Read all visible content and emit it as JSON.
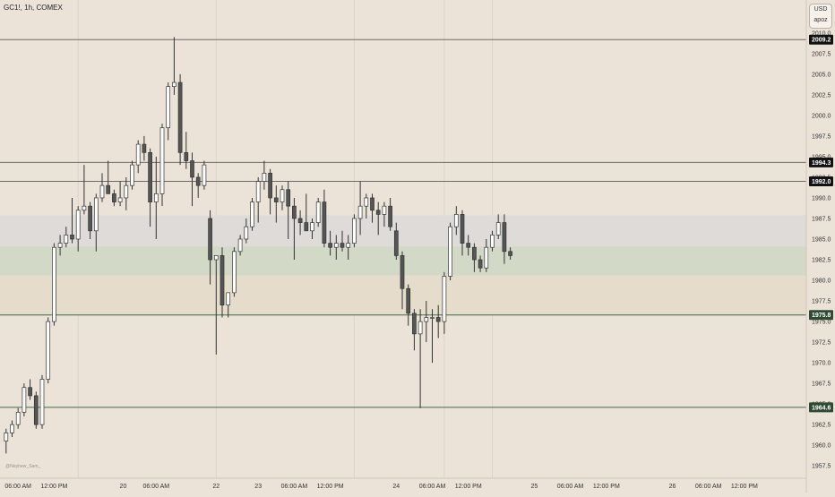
{
  "header": {
    "title": "GC1!, 1h, COMEX"
  },
  "price_scale": {
    "currency": "USD",
    "mode": "apoz"
  },
  "watermark": "@Nephew_Sam_",
  "colors": {
    "background": "#ece3d8",
    "bull_body": "#ffffff",
    "bear_body": "#555555",
    "wick": "#333333",
    "grid": "#ddd3c6",
    "zone_grey": "#dedbd8",
    "zone_green": "#d3d9c7",
    "zone_tan": "#e6dccc",
    "level_line": "#6b6b6b",
    "green_line": "#3f6b45",
    "label_dark": "#111111",
    "label_green": "#2f4a33"
  },
  "chart_data": {
    "type": "candlestick",
    "y_range": [
      1956,
      2014
    ],
    "y_ticks": [
      1957.5,
      1960.0,
      1962.5,
      1965.0,
      1967.5,
      1970.0,
      1972.5,
      1975.0,
      1977.5,
      1980.0,
      1982.5,
      1985.0,
      1987.5,
      1990.0,
      1992.5,
      1995.0,
      1997.5,
      2000.0,
      2002.5,
      2005.0,
      2007.5,
      2010.0
    ],
    "x_ticks": [
      {
        "i": 2,
        "label": "06:00 AM"
      },
      {
        "i": 8,
        "label": "12:00 PM"
      },
      {
        "i": 19.5,
        "label": "20"
      },
      {
        "i": 25,
        "label": "06:00 AM"
      },
      {
        "i": 35,
        "label": "22"
      },
      {
        "i": 42,
        "label": "23"
      },
      {
        "i": 48,
        "label": "06:00 AM"
      },
      {
        "i": 54,
        "label": "12:00 PM"
      },
      {
        "i": 65,
        "label": "24"
      },
      {
        "i": 71,
        "label": "06:00 AM"
      },
      {
        "i": 77,
        "label": "12:00 PM"
      },
      {
        "i": 88,
        "label": "25"
      },
      {
        "i": 94,
        "label": "06:00 AM"
      },
      {
        "i": 100,
        "label": "12:00 PM"
      },
      {
        "i": 111,
        "label": "26"
      },
      {
        "i": 117,
        "label": "06:00 AM"
      },
      {
        "i": 123,
        "label": "12:00 PM"
      }
    ],
    "vertical_grid_at": [
      12,
      35,
      58,
      73,
      81
    ],
    "zones": [
      {
        "from": 1987.9,
        "to": 1984.1,
        "color": "zone_grey"
      },
      {
        "from": 1984.1,
        "to": 1980.6,
        "color": "zone_green"
      },
      {
        "from": 1980.6,
        "to": 1975.8,
        "color": "zone_tan"
      }
    ],
    "levels": [
      {
        "price": 2009.2,
        "label": "2009.2",
        "style": "dark"
      },
      {
        "price": 1994.3,
        "label": "1994.3",
        "style": "dark"
      },
      {
        "price": 1992.0,
        "label": "1992.0",
        "style": "dark"
      },
      {
        "price": 1975.8,
        "label": "1975.8",
        "style": "green"
      },
      {
        "price": 1964.6,
        "label": "1964.6",
        "style": "green"
      }
    ],
    "candles": [
      [
        1960.5,
        1962.0,
        1959.0,
        1961.5
      ],
      [
        1961.5,
        1963.0,
        1961.0,
        1962.5
      ],
      [
        1962.5,
        1964.5,
        1962.0,
        1964.0
      ],
      [
        1964.0,
        1967.5,
        1963.5,
        1967.0
      ],
      [
        1967.0,
        1968.0,
        1965.5,
        1966.0
      ],
      [
        1966.0,
        1966.5,
        1962.0,
        1962.5
      ],
      [
        1962.5,
        1968.5,
        1962.0,
        1968.0
      ],
      [
        1968.0,
        1975.5,
        1967.5,
        1975.0
      ],
      [
        1975.0,
        1984.5,
        1974.5,
        1984.0
      ],
      [
        1984.0,
        1985.5,
        1983.0,
        1984.5
      ],
      [
        1984.5,
        1986.5,
        1984.0,
        1985.5
      ],
      [
        1985.5,
        1990.0,
        1984.5,
        1985.0
      ],
      [
        1985.0,
        1989.0,
        1983.5,
        1988.5
      ],
      [
        1988.5,
        1994.0,
        1988.0,
        1989.0
      ],
      [
        1989.0,
        1989.5,
        1985.0,
        1986.0
      ],
      [
        1986.0,
        1990.5,
        1983.5,
        1990.0
      ],
      [
        1990.0,
        1993.0,
        1989.5,
        1991.5
      ],
      [
        1991.5,
        1994.5,
        1990.5,
        1990.5
      ],
      [
        1990.5,
        1991.0,
        1989.0,
        1989.5
      ],
      [
        1989.5,
        1992.0,
        1989.0,
        1990.0
      ],
      [
        1990.0,
        1992.5,
        1988.5,
        1991.5
      ],
      [
        1991.5,
        1994.5,
        1991.0,
        1994.0
      ],
      [
        1994.0,
        1997.0,
        1993.0,
        1996.5
      ],
      [
        1996.5,
        1997.5,
        1994.5,
        1995.5
      ],
      [
        1995.5,
        1996.0,
        1986.5,
        1989.5
      ],
      [
        1989.5,
        1995.0,
        1985.0,
        1990.5
      ],
      [
        1990.5,
        1999.0,
        1989.0,
        1998.5
      ],
      [
        1998.5,
        2004.0,
        1997.0,
        2003.5
      ],
      [
        2003.5,
        2009.5,
        2002.5,
        2004.0
      ],
      [
        2004.0,
        2005.0,
        1994.0,
        1995.5
      ],
      [
        1995.5,
        1998.0,
        1993.5,
        1994.5
      ],
      [
        1994.5,
        1995.5,
        1989.0,
        1992.5
      ],
      [
        1992.5,
        1993.0,
        1990.0,
        1991.5
      ],
      [
        1991.5,
        1994.5,
        1991.0,
        1994.0
      ],
      [
        1987.5,
        1988.5,
        1979.5,
        1982.5
      ],
      [
        1982.5,
        1983.0,
        1971.0,
        1983.0
      ],
      [
        1983.0,
        1984.0,
        1975.5,
        1977.0
      ],
      [
        1977.0,
        1978.5,
        1975.5,
        1978.5
      ],
      [
        1978.5,
        1984.0,
        1978.0,
        1983.5
      ],
      [
        1983.5,
        1985.5,
        1983.0,
        1985.0
      ],
      [
        1985.0,
        1987.5,
        1984.5,
        1986.5
      ],
      [
        1986.5,
        1990.0,
        1986.0,
        1989.5
      ],
      [
        1989.5,
        1992.5,
        1987.0,
        1992.0
      ],
      [
        1992.0,
        1994.5,
        1991.0,
        1993.0
      ],
      [
        1993.0,
        1993.5,
        1988.0,
        1990.0
      ],
      [
        1990.0,
        1991.5,
        1987.0,
        1989.5
      ],
      [
        1989.5,
        1991.5,
        1988.5,
        1991.0
      ],
      [
        1991.0,
        1992.0,
        1985.0,
        1989.0
      ],
      [
        1989.0,
        1990.0,
        1982.5,
        1987.5
      ],
      [
        1987.5,
        1988.5,
        1985.5,
        1987.0
      ],
      [
        1987.0,
        1990.5,
        1986.5,
        1986.0
      ],
      [
        1986.0,
        1987.5,
        1985.0,
        1987.0
      ],
      [
        1987.0,
        1990.0,
        1986.5,
        1989.5
      ],
      [
        1989.5,
        1991.0,
        1984.0,
        1984.5
      ],
      [
        1984.5,
        1986.0,
        1983.0,
        1984.0
      ],
      [
        1984.0,
        1985.5,
        1982.5,
        1984.5
      ],
      [
        1984.5,
        1986.0,
        1983.5,
        1984.0
      ],
      [
        1984.0,
        1985.5,
        1982.5,
        1984.5
      ],
      [
        1984.5,
        1988.0,
        1984.0,
        1987.5
      ],
      [
        1987.5,
        1992.0,
        1985.5,
        1989.0
      ],
      [
        1989.0,
        1990.5,
        1987.5,
        1990.0
      ],
      [
        1990.0,
        1990.5,
        1987.0,
        1988.5
      ],
      [
        1988.5,
        1989.5,
        1985.5,
        1988.0
      ],
      [
        1988.0,
        1989.5,
        1986.5,
        1989.0
      ],
      [
        1989.0,
        1990.0,
        1986.0,
        1986.5
      ],
      [
        1986.0,
        1987.0,
        1982.5,
        1983.0
      ],
      [
        1983.0,
        1983.5,
        1976.5,
        1979.0
      ],
      [
        1979.0,
        1979.5,
        1974.5,
        1976.0
      ],
      [
        1976.0,
        1976.5,
        1971.5,
        1973.5
      ],
      [
        1973.5,
        1976.5,
        1964.5,
        1975.0
      ],
      [
        1975.0,
        1977.5,
        1972.5,
        1975.5
      ],
      [
        1975.5,
        1976.5,
        1970.0,
        1975.5
      ],
      [
        1975.5,
        1977.0,
        1973.0,
        1975.0
      ],
      [
        1975.0,
        1981.0,
        1973.5,
        1980.5
      ],
      [
        1980.5,
        1987.0,
        1980.0,
        1986.5
      ],
      [
        1986.5,
        1989.0,
        1985.5,
        1988.0
      ],
      [
        1988.0,
        1988.5,
        1983.0,
        1984.5
      ],
      [
        1984.5,
        1985.5,
        1983.0,
        1984.0
      ],
      [
        1984.0,
        1984.5,
        1981.0,
        1982.5
      ],
      [
        1982.5,
        1983.0,
        1981.0,
        1981.5
      ],
      [
        1981.5,
        1985.0,
        1981.0,
        1984.0
      ],
      [
        1984.0,
        1986.0,
        1983.5,
        1985.5
      ],
      [
        1985.5,
        1988.0,
        1985.0,
        1987.0
      ],
      [
        1987.0,
        1988.0,
        1982.0,
        1983.5
      ],
      [
        1983.5,
        1984.0,
        1982.5,
        1983.0
      ]
    ]
  }
}
